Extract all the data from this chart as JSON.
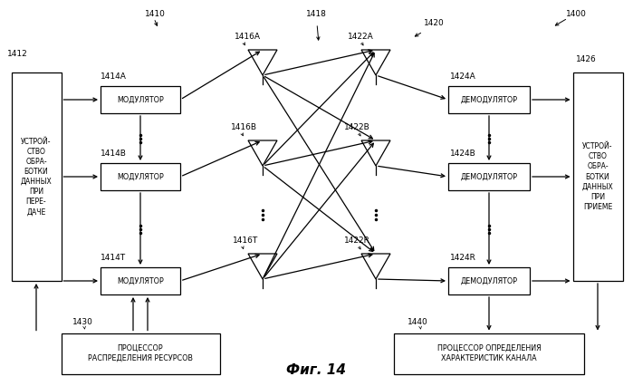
{
  "bg_color": "#ffffff",
  "fig_width": 6.99,
  "fig_height": 4.26,
  "dpi": 100,
  "title": "Фиг. 14",
  "label_1400": "1400",
  "label_1410": "1410",
  "label_1412": "1412",
  "label_1414A": "1414A",
  "label_1414B": "1414B",
  "label_1414T": "1414T",
  "label_1416A": "1416A",
  "label_1416B": "1416B",
  "label_1416T": "1416T",
  "label_1418": "1418",
  "label_1420": "1420",
  "label_1422A": "1422A",
  "label_1422B": "1422B",
  "label_1422R": "1422R",
  "label_1424A": "1424A",
  "label_1424B": "1424B",
  "label_1424R": "1424R",
  "label_1426": "1426",
  "label_1430": "1430",
  "label_1440": "1440",
  "box_tx": "УСТРОЙ-\nСТВО\nОБРА-\nБОТКИ\nДАННЫХ\nПРИ\nПЕРЕ-\nДАЧЕ",
  "box_rx": "УСТРОЙ-\nСТВО\nОБРА-\nБОТКИ\nДАННЫХ\nПРИ\nПРИЕМЕ",
  "box_mod": "МОДУЛЯТОР",
  "box_demod": "ДЕМОДУЛЯТОР",
  "box_proc_tx": "ПРОЦЕССОР\nРАСПРЕДЕЛЕНИЯ РЕСУРСОВ",
  "box_proc_rx": "ПРОЦЕССОР ОПРЕДЕЛЕНИЯ\nХАРАКТЕРИСТИК КАНАЛА"
}
